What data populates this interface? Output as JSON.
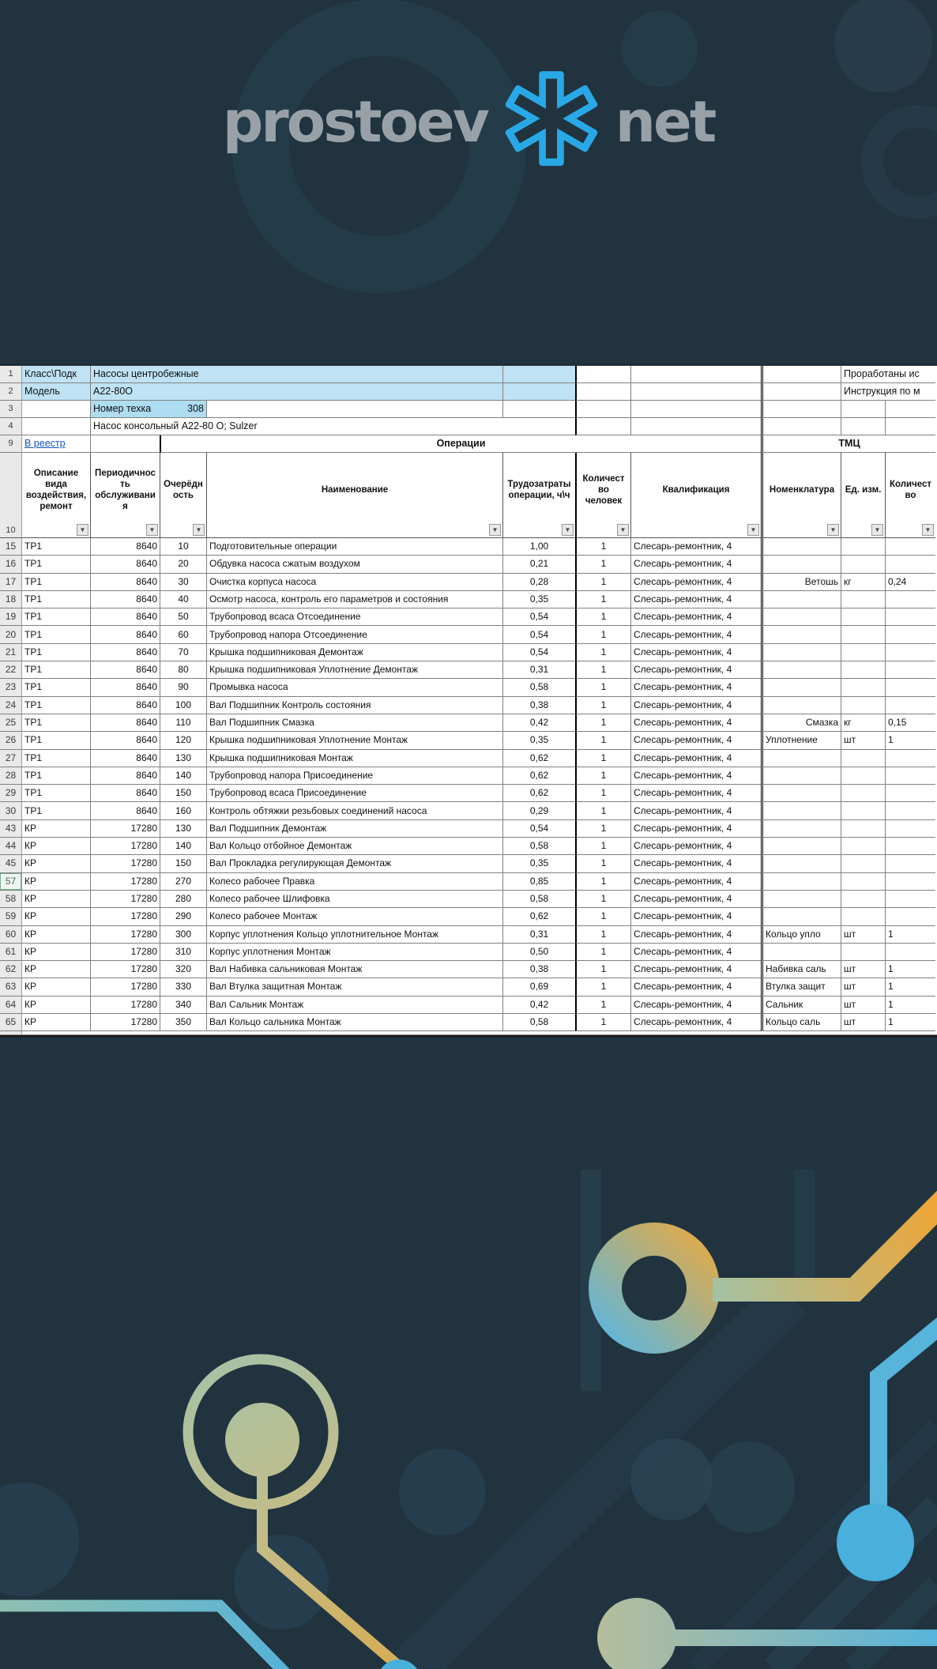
{
  "logo": {
    "text_left": "prostoev",
    "text_right": "net",
    "icon": "asterisk-logo-icon",
    "colors": {
      "text_gray": "#99a1a8",
      "icon_blue": "#29a8e6"
    }
  },
  "colors": {
    "page_background": "#20333f",
    "header_fill_blue": "#bfe3f4",
    "value_fill_blue": "#aedcf1",
    "link_blue": "#1155cc",
    "row_header_gray": "#e9e9e9",
    "decor_orange": "#f2a432",
    "decor_blue": "#57b4db",
    "decor_sage": "#b6bd9b"
  },
  "sheet": {
    "row1": {
      "num": "1",
      "label": "Класс\\Подк",
      "value": "Насосы центробежные",
      "right": "Проработаны ис"
    },
    "row2": {
      "num": "2",
      "label": "Модель",
      "value": "А22-80О",
      "right": "Инструкция по м"
    },
    "row3": {
      "num": "3",
      "label": "Номер техка",
      "value": "308"
    },
    "row4": {
      "num": "4",
      "value": "Насос консольный А22-80 О; Sulzer"
    },
    "row9": {
      "num": "9",
      "link": "В реестр",
      "operations": "Операции",
      "tmc": "ТМЦ"
    },
    "header": {
      "num": "10",
      "col_type": "Описание вида воздействия, ремонт",
      "col_period": "Периодичность обслуживания",
      "col_order": "Очерёдность",
      "col_name": "Наименование",
      "col_labor": "Трудозатраты операции, ч\\ч",
      "col_people": "Количество человек",
      "col_qual": "Квалификация",
      "col_nom": "Номенклатура",
      "col_unit": "Ед. изм.",
      "col_qty": "Количество",
      "dropdown_glyph": "▼"
    },
    "rows": [
      {
        "n": "15",
        "t": "ТР1",
        "p": "8640",
        "o": "10",
        "name": "Подготовительные операции",
        "labor": "1,00",
        "people": "1",
        "qual": "Слесарь-ремонтник, 4",
        "nom": "",
        "unit": "",
        "qty": ""
      },
      {
        "n": "16",
        "t": "ТР1",
        "p": "8640",
        "o": "20",
        "name": "Обдувка насоса сжатым воздухом",
        "labor": "0,21",
        "people": "1",
        "qual": "Слесарь-ремонтник, 4",
        "nom": "",
        "unit": "",
        "qty": ""
      },
      {
        "n": "17",
        "t": "ТР1",
        "p": "8640",
        "o": "30",
        "name": "Очистка корпуса насоса",
        "labor": "0,28",
        "people": "1",
        "qual": "Слесарь-ремонтник, 4",
        "nom": "Ветошь",
        "nomRight": true,
        "unit": "кг",
        "qty": "0,24"
      },
      {
        "n": "18",
        "t": "ТР1",
        "p": "8640",
        "o": "40",
        "name": "Осмотр насоса, контроль его параметров и состояния",
        "labor": "0,35",
        "people": "1",
        "qual": "Слесарь-ремонтник, 4",
        "nom": "",
        "unit": "",
        "qty": ""
      },
      {
        "n": "19",
        "t": "ТР1",
        "p": "8640",
        "o": "50",
        "name": "Трубопровод всаса Отсоединение",
        "labor": "0,54",
        "people": "1",
        "qual": "Слесарь-ремонтник, 4",
        "nom": "",
        "unit": "",
        "qty": ""
      },
      {
        "n": "20",
        "t": "ТР1",
        "p": "8640",
        "o": "60",
        "name": "Трубопровод напора Отсоединение",
        "labor": "0,54",
        "people": "1",
        "qual": "Слесарь-ремонтник, 4",
        "nom": "",
        "unit": "",
        "qty": ""
      },
      {
        "n": "21",
        "t": "ТР1",
        "p": "8640",
        "o": "70",
        "name": "Крышка подшипниковая Демонтаж",
        "labor": "0,54",
        "people": "1",
        "qual": "Слесарь-ремонтник, 4",
        "nom": "",
        "unit": "",
        "qty": ""
      },
      {
        "n": "22",
        "t": "ТР1",
        "p": "8640",
        "o": "80",
        "name": "Крышка подшипниковая Уплотнение Демонтаж",
        "labor": "0,31",
        "people": "1",
        "qual": "Слесарь-ремонтник, 4",
        "nom": "",
        "unit": "",
        "qty": ""
      },
      {
        "n": "23",
        "t": "ТР1",
        "p": "8640",
        "o": "90",
        "name": "Промывка насоса",
        "labor": "0,58",
        "people": "1",
        "qual": "Слесарь-ремонтник, 4",
        "nom": "",
        "unit": "",
        "qty": ""
      },
      {
        "n": "24",
        "t": "ТР1",
        "p": "8640",
        "o": "100",
        "name": "Вал Подшипник Контроль состояния",
        "labor": "0,38",
        "people": "1",
        "qual": "Слесарь-ремонтник, 4",
        "nom": "",
        "unit": "",
        "qty": ""
      },
      {
        "n": "25",
        "t": "ТР1",
        "p": "8640",
        "o": "110",
        "name": "Вал Подшипник Смазка",
        "labor": "0,42",
        "people": "1",
        "qual": "Слесарь-ремонтник, 4",
        "nom": "Смазка",
        "nomRight": true,
        "unit": "кг",
        "qty": "0,15"
      },
      {
        "n": "26",
        "t": "ТР1",
        "p": "8640",
        "o": "120",
        "name": "Крышка подшипниковая Уплотнение Монтаж",
        "labor": "0,35",
        "people": "1",
        "qual": "Слесарь-ремонтник, 4",
        "nom": "Уплотнение",
        "unit": "шт",
        "qty": "1"
      },
      {
        "n": "27",
        "t": "ТР1",
        "p": "8640",
        "o": "130",
        "name": "Крышка подшипниковая Монтаж",
        "labor": "0,62",
        "people": "1",
        "qual": "Слесарь-ремонтник, 4",
        "nom": "",
        "unit": "",
        "qty": ""
      },
      {
        "n": "28",
        "t": "ТР1",
        "p": "8640",
        "o": "140",
        "name": "Трубопровод напора Присоединение",
        "labor": "0,62",
        "people": "1",
        "qual": "Слесарь-ремонтник, 4",
        "nom": "",
        "unit": "",
        "qty": ""
      },
      {
        "n": "29",
        "t": "ТР1",
        "p": "8640",
        "o": "150",
        "name": "Трубопровод всаса Присоединение",
        "labor": "0,62",
        "people": "1",
        "qual": "Слесарь-ремонтник, 4",
        "nom": "",
        "unit": "",
        "qty": ""
      },
      {
        "n": "30",
        "t": "ТР1",
        "p": "8640",
        "o": "160",
        "name": "Контроль обтяжки резьбовых соединений насоса",
        "labor": "0,29",
        "people": "1",
        "qual": "Слесарь-ремонтник, 4",
        "nom": "",
        "unit": "",
        "qty": ""
      },
      {
        "n": "43",
        "t": "КР",
        "p": "17280",
        "o": "130",
        "name": "Вал Подшипник Демонтаж",
        "labor": "0,54",
        "people": "1",
        "qual": "Слесарь-ремонтник, 4",
        "nom": "",
        "unit": "",
        "qty": ""
      },
      {
        "n": "44",
        "t": "КР",
        "p": "17280",
        "o": "140",
        "name": "Вал Кольцо отбойное Демонтаж",
        "labor": "0,58",
        "people": "1",
        "qual": "Слесарь-ремонтник, 4",
        "nom": "",
        "unit": "",
        "qty": ""
      },
      {
        "n": "45",
        "t": "КР",
        "p": "17280",
        "o": "150",
        "name": "Вал Прокладка регулирующая Демонтаж",
        "labor": "0,35",
        "people": "1",
        "qual": "Слесарь-ремонтник, 4",
        "nom": "",
        "unit": "",
        "qty": ""
      },
      {
        "n": "57",
        "t": "КР",
        "p": "17280",
        "o": "270",
        "name": "Колесо рабочее Правка",
        "labor": "0,85",
        "people": "1",
        "qual": "Слесарь-ремонтник, 4",
        "nom": "",
        "unit": "",
        "qty": "",
        "active": true
      },
      {
        "n": "58",
        "t": "КР",
        "p": "17280",
        "o": "280",
        "name": "Колесо рабочее Шлифовка",
        "labor": "0,58",
        "people": "1",
        "qual": "Слесарь-ремонтник, 4",
        "nom": "",
        "unit": "",
        "qty": ""
      },
      {
        "n": "59",
        "t": "КР",
        "p": "17280",
        "o": "290",
        "name": "Колесо рабочее Монтаж",
        "labor": "0,62",
        "people": "1",
        "qual": "Слесарь-ремонтник, 4",
        "nom": "",
        "unit": "",
        "qty": ""
      },
      {
        "n": "60",
        "t": "КР",
        "p": "17280",
        "o": "300",
        "name": "Корпус уплотнения Кольцо уплотнительное Монтаж",
        "labor": "0,31",
        "people": "1",
        "qual": "Слесарь-ремонтник, 4",
        "nom": "Кольцо упло",
        "unit": "шт",
        "qty": "1"
      },
      {
        "n": "61",
        "t": "КР",
        "p": "17280",
        "o": "310",
        "name": "Корпус уплотнения Монтаж",
        "labor": "0,50",
        "people": "1",
        "qual": "Слесарь-ремонтник, 4",
        "nom": "",
        "unit": "",
        "qty": ""
      },
      {
        "n": "62",
        "t": "КР",
        "p": "17280",
        "o": "320",
        "name": "Вал Набивка сальниковая Монтаж",
        "labor": "0,38",
        "people": "1",
        "qual": "Слесарь-ремонтник, 4",
        "nom": "Набивка саль",
        "unit": "шт",
        "qty": "1"
      },
      {
        "n": "63",
        "t": "КР",
        "p": "17280",
        "o": "330",
        "name": "Вал Втулка защитная Монтаж",
        "labor": "0,69",
        "people": "1",
        "qual": "Слесарь-ремонтник, 4",
        "nom": "Втулка защит",
        "unit": "шт",
        "qty": "1"
      },
      {
        "n": "64",
        "t": "КР",
        "p": "17280",
        "o": "340",
        "name": "Вал Сальник Монтаж",
        "labor": "0,42",
        "people": "1",
        "qual": "Слесарь-ремонтник, 4",
        "nom": "Сальник",
        "unit": "шт",
        "qty": "1"
      },
      {
        "n": "65",
        "t": "КР",
        "p": "17280",
        "o": "350",
        "name": "Вал Кольцо сальника Монтаж",
        "labor": "0,58",
        "people": "1",
        "qual": "Слесарь-ремонтник, 4",
        "nom": "Кольцо саль",
        "unit": "шт",
        "qty": "1"
      }
    ]
  }
}
